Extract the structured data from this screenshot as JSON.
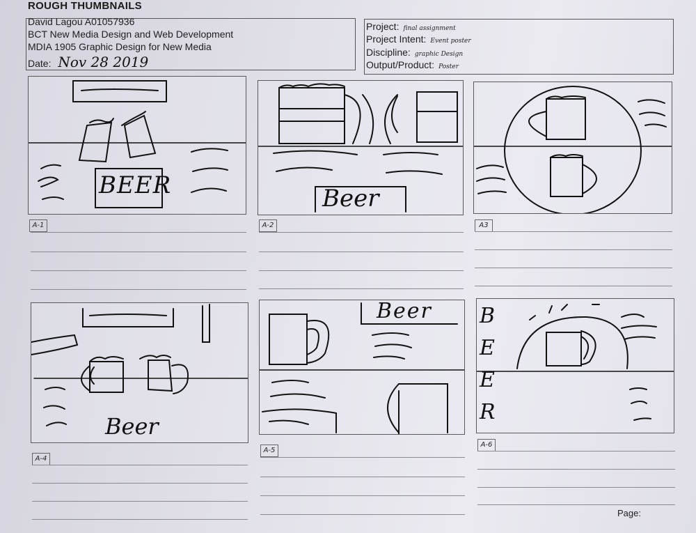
{
  "sheet_title": "ROUGH THUMBNAILS",
  "student": {
    "name_id": "David Lagou A01057936",
    "program": "BCT New Media Design and Web Development",
    "course": "MDIA 1905 Graphic Design for New Media",
    "date_label": "Date:",
    "date_value": "Nov 28  2019"
  },
  "project": {
    "project_label": "Project:",
    "project_value": "final assignment",
    "intent_label": "Project Intent:",
    "intent_value": "Event poster",
    "discipline_label": "Discipline:",
    "discipline_value": "graphic Design",
    "output_label": "Output/Product:",
    "output_value": "Poster"
  },
  "thumbnails": [
    {
      "label": "A-1",
      "text": "BEER"
    },
    {
      "label": "A-2",
      "text": "Beer"
    },
    {
      "label": "A3",
      "text": ""
    },
    {
      "label": "A-4",
      "text": "Beer"
    },
    {
      "label": "A-5",
      "text": "Beer"
    },
    {
      "label": "A-6",
      "text": "B E E R"
    }
  ],
  "page_label": "Page:"
}
